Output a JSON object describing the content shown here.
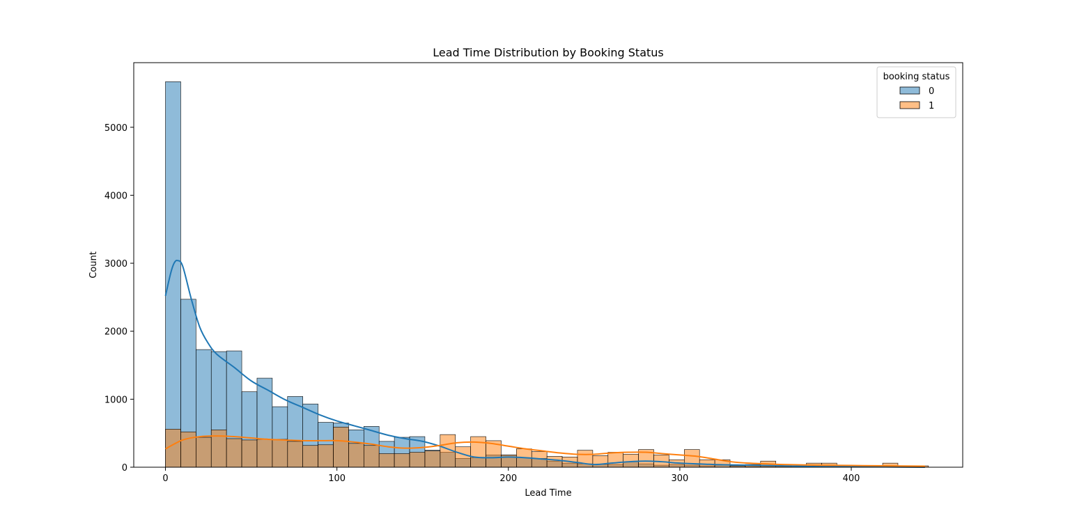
{
  "chart_data": {
    "type": "bar",
    "subtype": "overlapping histogram with KDE lines",
    "title": "Lead Time Distribution by Booking Status",
    "xlabel": "Lead Time",
    "ylabel": "Count",
    "xlim": [
      -18.5,
      465
    ],
    "ylim": [
      0,
      5950
    ],
    "xticks": [
      0,
      100,
      200,
      300,
      400
    ],
    "yticks": [
      0,
      1000,
      2000,
      3000,
      4000,
      5000
    ],
    "grid": false,
    "legend": {
      "title": "booking status",
      "placement": "top-right"
    },
    "bin_width": 8.9,
    "bin_starts": [
      0,
      8.9,
      17.8,
      26.7,
      35.6,
      44.5,
      53.4,
      62.3,
      71.2,
      80.1,
      89,
      97.9,
      106.8,
      115.7,
      124.6,
      133.5,
      142.4,
      151.3,
      160.2,
      169.1,
      178,
      186.9,
      195.8,
      204.7,
      213.6,
      222.5,
      231.4,
      240.3,
      249.2,
      258.1,
      267,
      275.9,
      284.8,
      293.7,
      302.6,
      311.5,
      320.4,
      329.3,
      338.2,
      347.1,
      356,
      364.9,
      373.8,
      382.7,
      391.6,
      400.5,
      409.4,
      418.3,
      427.2,
      436.1
    ],
    "series": [
      {
        "name": "0",
        "color": "#1f77b4",
        "values": [
          5670,
          2470,
          1730,
          1700,
          1710,
          1110,
          1310,
          890,
          1040,
          930,
          660,
          650,
          550,
          600,
          380,
          440,
          450,
          250,
          220,
          130,
          140,
          180,
          180,
          140,
          130,
          90,
          60,
          50,
          40,
          40,
          80,
          50,
          30,
          40,
          30,
          20,
          30,
          20,
          10,
          10,
          10,
          10,
          5,
          5,
          5,
          5,
          0,
          0,
          0,
          0
        ],
        "kde_x": [
          0,
          3,
          5,
          7,
          10,
          15,
          20,
          25,
          30,
          40,
          50,
          60,
          70,
          80,
          90,
          100,
          110,
          120,
          130,
          140,
          150,
          160,
          170,
          180,
          190,
          200,
          210,
          220,
          230,
          240,
          250,
          260,
          270,
          280,
          290,
          300,
          320,
          340,
          360,
          380,
          400,
          420,
          443
        ],
        "kde_y": [
          2520,
          2850,
          3000,
          3040,
          2960,
          2480,
          2060,
          1820,
          1660,
          1470,
          1270,
          1130,
          990,
          880,
          770,
          680,
          610,
          540,
          470,
          420,
          380,
          310,
          220,
          150,
          140,
          150,
          140,
          120,
          100,
          70,
          40,
          60,
          80,
          90,
          80,
          60,
          40,
          30,
          20,
          10,
          10,
          5,
          0
        ]
      },
      {
        "name": "1",
        "color": "#ff7f0e",
        "values": [
          560,
          520,
          440,
          550,
          420,
          400,
          410,
          410,
          380,
          320,
          330,
          590,
          350,
          320,
          200,
          200,
          220,
          240,
          480,
          300,
          450,
          390,
          180,
          270,
          230,
          160,
          150,
          250,
          170,
          220,
          190,
          260,
          180,
          110,
          260,
          110,
          110,
          20,
          40,
          90,
          40,
          20,
          60,
          60,
          20,
          20,
          20,
          60,
          20,
          20
        ],
        "kde_x": [
          0,
          10,
          20,
          30,
          40,
          50,
          60,
          70,
          80,
          90,
          100,
          110,
          120,
          130,
          140,
          150,
          160,
          170,
          180,
          190,
          200,
          210,
          220,
          230,
          240,
          250,
          260,
          270,
          280,
          290,
          300,
          310,
          320,
          330,
          340,
          350,
          360,
          380,
          400,
          420,
          443
        ],
        "kde_y": [
          270,
          400,
          450,
          460,
          450,
          430,
          410,
          400,
          390,
          390,
          390,
          370,
          340,
          300,
          280,
          290,
          320,
          360,
          370,
          350,
          310,
          270,
          240,
          210,
          190,
          190,
          210,
          220,
          220,
          200,
          180,
          160,
          120,
          80,
          60,
          50,
          40,
          30,
          25,
          20,
          15
        ]
      }
    ]
  }
}
